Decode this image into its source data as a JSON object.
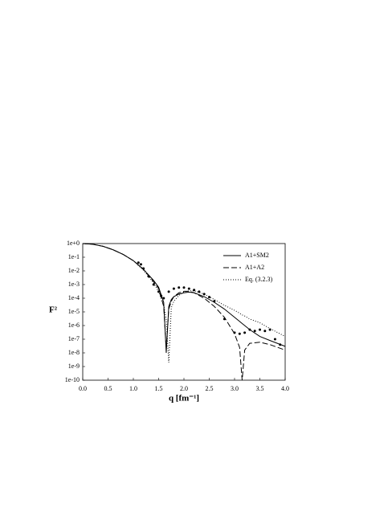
{
  "chart_data": {
    "type": "line",
    "ylog": true,
    "legend": "upper right",
    "xlabel": "q [fm⁻¹]",
    "ylabel": "F²",
    "xlim": [
      0,
      4
    ],
    "ylim": [
      1e-10,
      1
    ],
    "xticks": [
      {
        "value": 0,
        "label": "0.0"
      },
      {
        "value": 0.5,
        "label": "0.5"
      },
      {
        "value": 1,
        "label": "1.0"
      },
      {
        "value": 1.5,
        "label": "1.5"
      },
      {
        "value": 2,
        "label": "2.0"
      },
      {
        "value": 2.5,
        "label": "2.5"
      },
      {
        "value": 3,
        "label": "3.0"
      },
      {
        "value": 3.5,
        "label": "3.5"
      },
      {
        "value": 4,
        "label": "4.0"
      }
    ],
    "yticks": [
      {
        "value": 1,
        "label": "1e+0"
      },
      {
        "value": 0.1,
        "label": "1e-1"
      },
      {
        "value": 0.01,
        "label": "1e-2"
      },
      {
        "value": 0.001,
        "label": "1e-3"
      },
      {
        "value": 0.0001,
        "label": "1e-4"
      },
      {
        "value": 1e-05,
        "label": "1e-5"
      },
      {
        "value": 1e-06,
        "label": "1e-6"
      },
      {
        "value": 1e-07,
        "label": "1e-7"
      },
      {
        "value": 1e-08,
        "label": "1e-8"
      },
      {
        "value": 1e-09,
        "label": "1e-9"
      },
      {
        "value": 1e-10,
        "label": "1e-10"
      }
    ],
    "x": [
      0,
      0.2,
      0.4,
      0.6,
      0.8,
      1.0,
      1.2,
      1.4,
      1.5,
      1.6,
      1.65,
      1.7,
      1.75,
      1.8,
      1.9,
      2.0,
      2.1,
      2.2,
      2.4,
      2.6,
      2.8,
      3.0,
      3.1,
      3.15,
      3.2,
      3.3,
      3.5,
      3.7,
      4.0
    ],
    "series": [
      {
        "name": "A1+SM2",
        "color": "#000000",
        "dash": "solid",
        "values": [
          1,
          0.89,
          0.63,
          0.35,
          0.16,
          0.056,
          0.013,
          0.002,
          0.00063,
          5e-05,
          1e-08,
          2.5e-05,
          8e-05,
          0.00013,
          0.0002,
          0.00025,
          0.00028,
          0.00025,
          0.00013,
          5e-05,
          1.6e-05,
          4e-06,
          2e-06,
          1.4e-06,
          1e-06,
          5e-07,
          1.6e-07,
          8e-08,
          3e-08
        ]
      },
      {
        "name": "A1+A2",
        "color": "#000000",
        "dash": "dashed",
        "values": [
          1,
          0.89,
          0.63,
          0.35,
          0.16,
          0.056,
          0.013,
          0.0016,
          0.0005,
          2.5e-05,
          2e-08,
          1.6e-05,
          6e-05,
          0.00013,
          0.00025,
          0.00032,
          0.00032,
          0.00025,
          0.0001,
          2.5e-05,
          4e-06,
          2.5e-07,
          2.5e-08,
          1e-10,
          1.6e-08,
          5e-08,
          6e-08,
          4e-08,
          1.6e-08
        ]
      },
      {
        "name": "Eq. (3.2.3)",
        "color": "#000000",
        "dash": "dotted",
        "values": [
          1,
          0.89,
          0.63,
          0.35,
          0.16,
          0.056,
          0.011,
          0.0013,
          0.0003,
          3e-05,
          3e-06,
          2e-09,
          2e-05,
          6e-05,
          0.00016,
          0.00028,
          0.00035,
          0.00035,
          0.0002,
          8e-05,
          3e-05,
          1.3e-05,
          8e-06,
          6e-06,
          5e-06,
          3e-06,
          1.6e-06,
          6e-07,
          1.6e-07
        ]
      }
    ],
    "points": {
      "color": "#000000",
      "x": [
        1.1,
        1.15,
        1.2,
        1.3,
        1.4,
        1.5,
        1.55,
        1.6,
        1.7,
        1.8,
        1.9,
        2.0,
        2.1,
        2.2,
        2.3,
        2.4,
        2.5,
        2.6,
        2.8,
        3.0,
        3.1,
        3.2,
        3.3,
        3.4,
        3.5,
        3.6,
        3.7,
        3.8,
        3.9
      ],
      "values": [
        0.04,
        0.03,
        0.015,
        0.004,
        0.001,
        0.0003,
        0.00015,
        0.0001,
        0.0003,
        0.0005,
        0.0006,
        0.0006,
        0.0005,
        0.0004,
        0.0003,
        0.0002,
        0.00012,
        6e-05,
        3e-06,
        3e-07,
        2.5e-07,
        3e-07,
        5e-07,
        4e-07,
        5e-07,
        4e-07,
        5e-07,
        1e-07,
        4e-08
      ]
    }
  }
}
